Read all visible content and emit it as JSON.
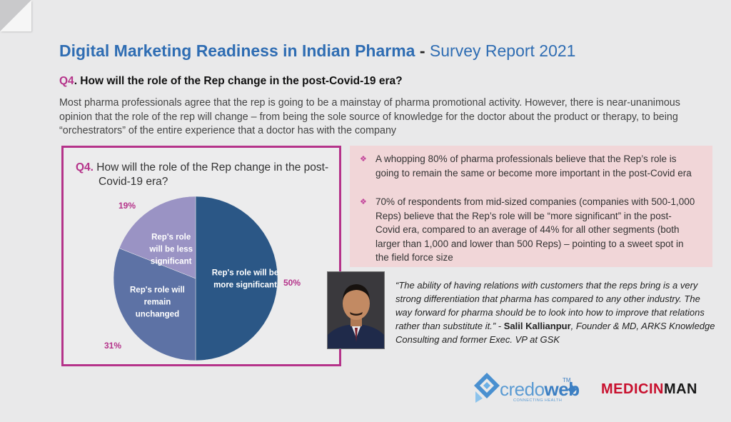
{
  "header": {
    "title_main": "Digital Marketing Readiness in Indian Pharma",
    "title_sep": " - ",
    "title_sub": "Survey Report 2021"
  },
  "question": {
    "number": "Q4",
    "text": ". How will the role of the Rep change in the post-Covid-19 era?"
  },
  "intro": "Most pharma professionals agree that the rep is going to be a mainstay of pharma promotional activity. However, there is near-unanimous opinion that the role of the rep will change – from being the sole source of knowledge for the doctor about the product or therapy, to being “orchestrators” of the entire experience that a doctor has with the company",
  "chart_data": {
    "type": "pie",
    "title_q": "Q4.",
    "title_line1": " How will the role of the Rep change in the post-",
    "title_line2": "Covid-19 era?",
    "slices": [
      {
        "name": "Rep's role will be more significant",
        "value": 50,
        "label": "50%",
        "color": "#2b5786",
        "label_lines": [
          "Rep's role will be",
          "more significant"
        ]
      },
      {
        "name": "Rep's role will remain unchanged",
        "value": 31,
        "label": "31%",
        "color": "#5d72a5",
        "label_lines": [
          "Rep's role will",
          "remain",
          "unchanged"
        ]
      },
      {
        "name": "Rep's role will be less significant",
        "value": 19,
        "label": "19%",
        "color": "#9a93c4",
        "label_lines": [
          "Rep's role",
          "will be less",
          "significant"
        ]
      }
    ]
  },
  "bullets": [
    "A whopping 80% of pharma professionals believe that the Rep’s role is going to remain the same or become more important in the post-Covid era",
    "70% of respondents from mid-sized companies (companies with 500-1,000 Reps) believe that the Rep’s role will be “more significant” in the post-Covid era, compared to an average of 44% for all other segments (both larger than 1,000 and lower than 500 Reps) – pointing to a sweet spot in the field force size"
  ],
  "bullet_marker": "❖",
  "quote": {
    "text": "“The ability of having relations with customers that the reps bring is a very strong differentiation that pharma has compared to any other industry. The way forward for pharma should be to look into how to improve that relations rather than substitute it.” - ",
    "name": "Salil Kallianpur",
    "attribution": ", Founder & MD, ARKS Knowledge Consulting and former Exec. VP at GSK"
  },
  "logos": {
    "credo_a": "credo",
    "credo_b": "web",
    "credo_tm": "TM",
    "credo_tag": "CONNECTING HEALTH",
    "medicinman_a": "MEDICIN",
    "medicinman_b": "MAN"
  },
  "colors": {
    "accent_magenta": "#b5338a",
    "title_blue": "#2f6db3",
    "bullet_bg": "#f1d6d8"
  }
}
